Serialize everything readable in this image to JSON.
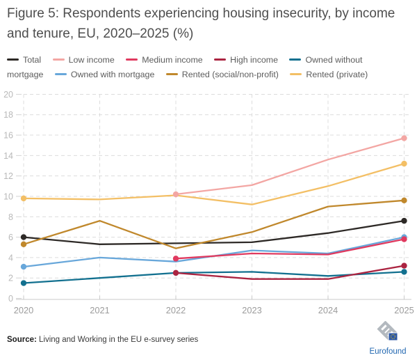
{
  "title": "Figure 5: Respondents experiencing housing insecurity, by income and tenure, EU, 2020–2025 (%)",
  "chart_data": {
    "type": "line",
    "x_labels": [
      "2020",
      "2021",
      "2022",
      "2023",
      "2024",
      "2025"
    ],
    "ylim": [
      0,
      20
    ],
    "ytick_step": 2,
    "grid": "dashed-horizontal-and-vertical",
    "legend_position": "top",
    "series": [
      {
        "key": "total",
        "name": "Total",
        "color": "#2d2926",
        "values": [
          6.0,
          5.3,
          5.4,
          5.5,
          6.4,
          7.6
        ]
      },
      {
        "key": "low-income",
        "name": "Low income",
        "color": "#f3a6a3",
        "values": [
          null,
          null,
          10.2,
          11.1,
          13.6,
          15.7
        ]
      },
      {
        "key": "medium-income",
        "name": "Medium income",
        "color": "#e03a5f",
        "values": [
          null,
          null,
          3.9,
          4.4,
          4.3,
          5.8
        ]
      },
      {
        "key": "high-income",
        "name": "High income",
        "color": "#ab2441",
        "values": [
          null,
          null,
          2.5,
          1.9,
          1.9,
          3.2
        ]
      },
      {
        "key": "owned-without-mortgage",
        "name": "Owned without mortgage",
        "color": "#12708f",
        "values": [
          1.5,
          2.0,
          2.5,
          2.6,
          2.2,
          2.6
        ]
      },
      {
        "key": "owned-with-mortgage",
        "name": "Owned with mortgage",
        "color": "#68a7da",
        "values": [
          3.1,
          4.0,
          3.6,
          4.7,
          4.4,
          6.0
        ]
      },
      {
        "key": "rented-social",
        "name": "Rented (social/non-profit)",
        "color": "#c0882c",
        "values": [
          5.3,
          7.6,
          4.9,
          6.5,
          9.0,
          9.6
        ]
      },
      {
        "key": "rented-private",
        "name": "Rented (private)",
        "color": "#f3bf65",
        "values": [
          9.8,
          9.7,
          10.1,
          9.2,
          11.0,
          13.2
        ]
      }
    ],
    "draw_order": [
      0,
      4,
      5,
      6,
      7,
      1,
      2,
      3
    ]
  },
  "source": {
    "label": "Source:",
    "text": " Living and Working in the EU e-survey series"
  },
  "logo": {
    "name": "Eurofound"
  }
}
